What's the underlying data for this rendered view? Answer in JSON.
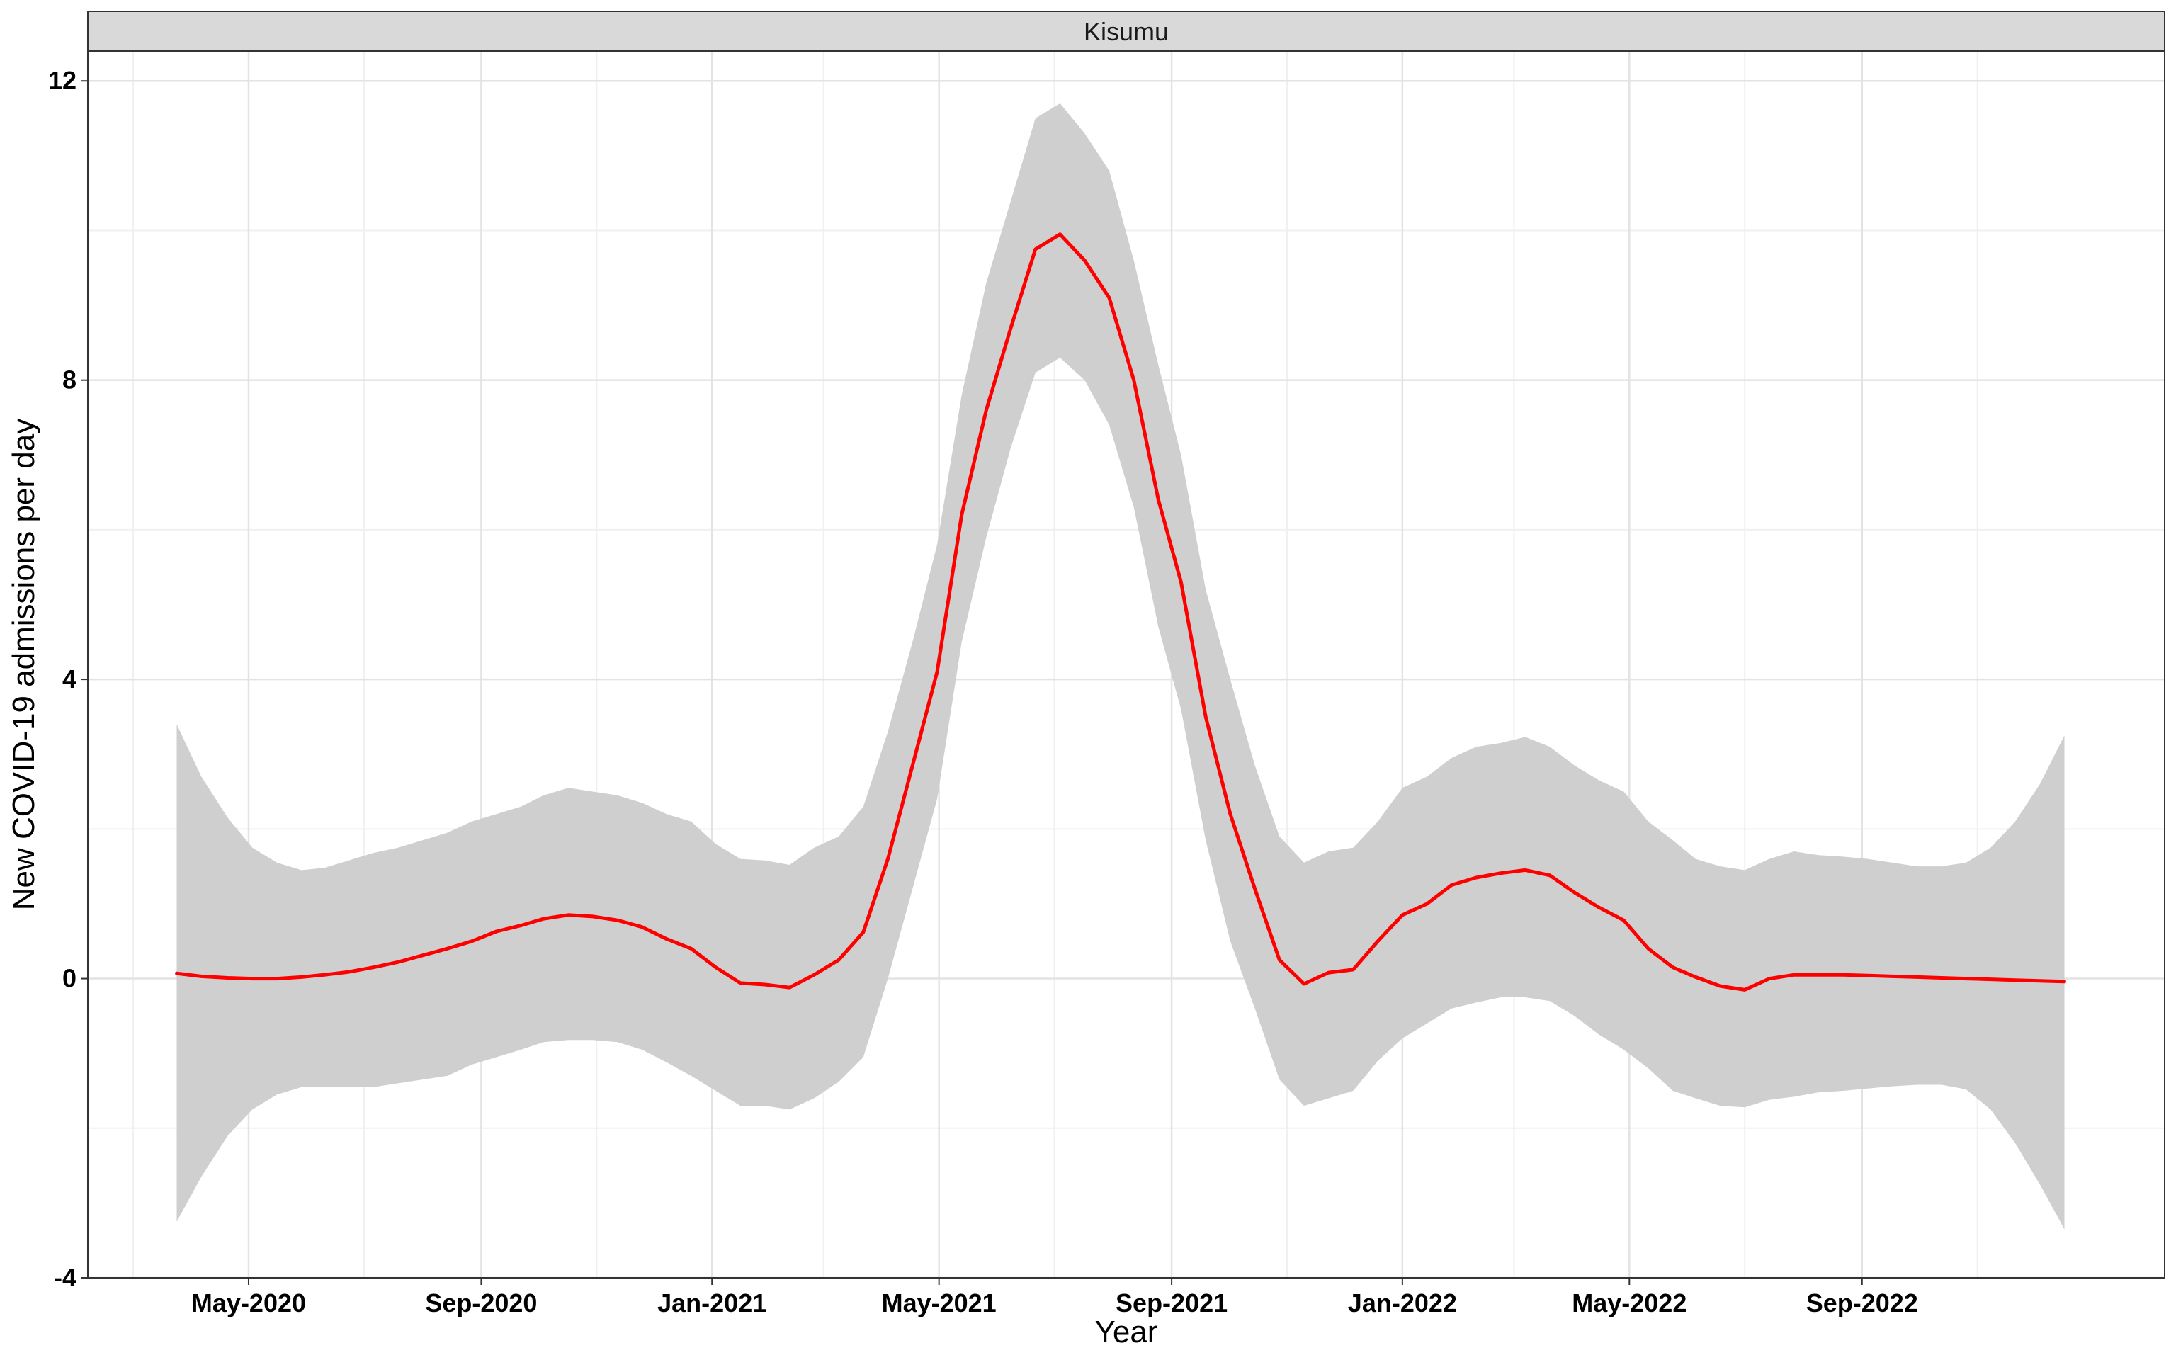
{
  "chart_data": {
    "type": "line",
    "panel_title": "Kisumu",
    "xlabel": "Year",
    "ylabel": "New COVID-19 admissions per day",
    "ylim": [
      -4,
      12.4
    ],
    "xlim": [
      "2020-02-06",
      "2023-02-08"
    ],
    "y_ticks": [
      {
        "value": -4,
        "label": "-4"
      },
      {
        "value": 0,
        "label": "0"
      },
      {
        "value": 4,
        "label": "4"
      },
      {
        "value": 8,
        "label": "8"
      },
      {
        "value": 12,
        "label": "12"
      }
    ],
    "x_ticks": [
      {
        "date": "2020-05-01",
        "label": "May-2020"
      },
      {
        "date": "2020-09-01",
        "label": "Sep-2020"
      },
      {
        "date": "2021-01-01",
        "label": "Jan-2021"
      },
      {
        "date": "2021-05-01",
        "label": "May-2021"
      },
      {
        "date": "2021-09-01",
        "label": "Sep-2021"
      },
      {
        "date": "2022-01-01",
        "label": "Jan-2022"
      },
      {
        "date": "2022-05-01",
        "label": "May-2022"
      },
      {
        "date": "2022-09-01",
        "label": "Sep-2022"
      }
    ],
    "x_minor_ticks": [
      "2020-03-01",
      "2020-07-01",
      "2020-11-01",
      "2021-03-01",
      "2021-07-01",
      "2021-11-01",
      "2022-03-01",
      "2022-07-01",
      "2022-11-01"
    ],
    "grid": true,
    "line_color": "#ff0000",
    "band_color": "#cfcfcf",
    "series": [
      {
        "dates": [
          "2020-03-24",
          "2020-04-06",
          "2020-04-20",
          "2020-05-03",
          "2020-05-16",
          "2020-05-29",
          "2020-06-10",
          "2020-06-23",
          "2020-07-06",
          "2020-07-19",
          "2020-08-01",
          "2020-08-14",
          "2020-08-27",
          "2020-09-09",
          "2020-09-22",
          "2020-10-04",
          "2020-10-17",
          "2020-10-30",
          "2020-11-12",
          "2020-11-25",
          "2020-12-08",
          "2020-12-21",
          "2021-01-03",
          "2021-01-16",
          "2021-01-29",
          "2021-02-11",
          "2021-02-24",
          "2021-03-09",
          "2021-03-22",
          "2021-04-04",
          "2021-04-17",
          "2021-04-30",
          "2021-05-13",
          "2021-05-26",
          "2021-06-08",
          "2021-06-21",
          "2021-07-04",
          "2021-07-17",
          "2021-07-30",
          "2021-08-12",
          "2021-08-25",
          "2021-09-06",
          "2021-09-19",
          "2021-10-02",
          "2021-10-15",
          "2021-10-28",
          "2021-11-10",
          "2021-11-23",
          "2021-12-06",
          "2021-12-19",
          "2022-01-01",
          "2022-01-14",
          "2022-01-27",
          "2022-02-09",
          "2022-02-22",
          "2022-03-07",
          "2022-03-20",
          "2022-04-02",
          "2022-04-15",
          "2022-04-28",
          "2022-05-11",
          "2022-05-24",
          "2022-06-05",
          "2022-06-18",
          "2022-07-01",
          "2022-07-14",
          "2022-07-27",
          "2022-08-09",
          "2022-08-22",
          "2022-09-04",
          "2022-09-17",
          "2022-09-30",
          "2022-10-13",
          "2022-10-26",
          "2022-11-08",
          "2022-11-21",
          "2022-12-04",
          "2022-12-17"
        ],
        "y": [
          0.07,
          0.03,
          0.01,
          0.0,
          0.0,
          0.02,
          0.05,
          0.09,
          0.15,
          0.22,
          0.31,
          0.4,
          0.5,
          0.63,
          0.71,
          0.8,
          0.85,
          0.83,
          0.78,
          0.69,
          0.53,
          0.4,
          0.15,
          -0.06,
          -0.08,
          -0.12,
          0.05,
          0.25,
          0.62,
          1.6,
          2.85,
          4.1,
          6.2,
          7.6,
          8.7,
          9.75,
          9.95,
          9.6,
          9.1,
          8.0,
          6.4,
          5.3,
          3.5,
          2.2,
          1.2,
          0.25,
          -0.07,
          0.08,
          0.12,
          0.5,
          0.85,
          1.0,
          1.25,
          1.35,
          1.41,
          1.45,
          1.38,
          1.15,
          0.95,
          0.78,
          0.4,
          0.15,
          0.02,
          -0.1,
          -0.15,
          0.0,
          0.05,
          0.05,
          0.05,
          0.04,
          0.03,
          0.02,
          0.01,
          0.0,
          -0.01,
          -0.02,
          -0.03,
          -0.04
        ],
        "upper": [
          3.4,
          2.7,
          2.15,
          1.75,
          1.55,
          1.45,
          1.48,
          1.58,
          1.68,
          1.75,
          1.85,
          1.95,
          2.1,
          2.2,
          2.3,
          2.45,
          2.55,
          2.5,
          2.45,
          2.35,
          2.2,
          2.1,
          1.8,
          1.6,
          1.58,
          1.52,
          1.75,
          1.9,
          2.3,
          3.3,
          4.5,
          5.8,
          7.8,
          9.3,
          10.4,
          11.5,
          11.7,
          11.3,
          10.8,
          9.6,
          8.2,
          7.0,
          5.2,
          4.0,
          2.85,
          1.9,
          1.55,
          1.7,
          1.75,
          2.1,
          2.55,
          2.7,
          2.95,
          3.1,
          3.15,
          3.23,
          3.1,
          2.85,
          2.65,
          2.5,
          2.1,
          1.85,
          1.6,
          1.5,
          1.45,
          1.6,
          1.7,
          1.65,
          1.63,
          1.6,
          1.55,
          1.5,
          1.5,
          1.55,
          1.75,
          2.1,
          2.6,
          3.25
        ],
        "lower": [
          -3.25,
          -2.65,
          -2.1,
          -1.75,
          -1.55,
          -1.45,
          -1.45,
          -1.45,
          -1.45,
          -1.4,
          -1.35,
          -1.3,
          -1.15,
          -1.05,
          -0.95,
          -0.85,
          -0.82,
          -0.82,
          -0.85,
          -0.95,
          -1.12,
          -1.3,
          -1.5,
          -1.7,
          -1.7,
          -1.75,
          -1.6,
          -1.38,
          -1.05,
          0.0,
          1.2,
          2.4,
          4.5,
          5.9,
          7.1,
          8.1,
          8.3,
          8.0,
          7.4,
          6.3,
          4.7,
          3.6,
          1.85,
          0.5,
          -0.4,
          -1.35,
          -1.7,
          -1.6,
          -1.5,
          -1.1,
          -0.8,
          -0.6,
          -0.4,
          -0.32,
          -0.25,
          -0.25,
          -0.3,
          -0.5,
          -0.75,
          -0.95,
          -1.2,
          -1.5,
          -1.6,
          -1.7,
          -1.72,
          -1.62,
          -1.58,
          -1.52,
          -1.5,
          -1.47,
          -1.44,
          -1.42,
          -1.42,
          -1.48,
          -1.75,
          -2.2,
          -2.75,
          -3.35
        ]
      }
    ]
  }
}
